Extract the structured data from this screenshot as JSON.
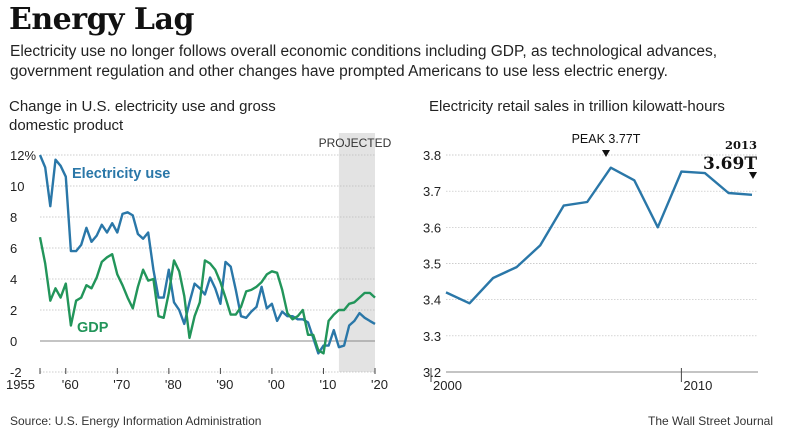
{
  "header": {
    "title": "Energy Lag",
    "subtitle": "Electricity use no longer follows overall economic conditions including GDP, as technological advances, government regulation and other changes have prompted Americans to use less electric energy."
  },
  "footer": {
    "source": "Source: U.S. Energy Information Administration",
    "publisher": "The Wall Street Journal"
  },
  "colors": {
    "electricity": "#2a77a8",
    "gdp": "#22955a",
    "projected_band": "#e3e3e3",
    "grid": "#bdbdbd"
  },
  "chart_data": [
    {
      "type": "line",
      "title": "Change in U.S. electricity use and gross domestic product",
      "projected_label": "PROJECTED",
      "projected_range": [
        2013,
        2020
      ],
      "xlim": [
        1955,
        2020
      ],
      "ylim": [
        -2,
        12
      ],
      "x_ticks": [
        {
          "value": 1955,
          "label": "1955"
        },
        {
          "value": 1960,
          "label": "'60"
        },
        {
          "value": 1970,
          "label": "'70"
        },
        {
          "value": 1980,
          "label": "'80"
        },
        {
          "value": 1990,
          "label": "'90"
        },
        {
          "value": 2000,
          "label": "'00"
        },
        {
          "value": 2010,
          "label": "'10"
        },
        {
          "value": 2020,
          "label": "'20"
        }
      ],
      "y_ticks": [
        {
          "value": -2,
          "label": "-2"
        },
        {
          "value": 0,
          "label": "0"
        },
        {
          "value": 2,
          "label": "2"
        },
        {
          "value": 4,
          "label": "4"
        },
        {
          "value": 6,
          "label": "6"
        },
        {
          "value": 8,
          "label": "8"
        },
        {
          "value": 10,
          "label": "10"
        },
        {
          "value": 12,
          "label": "12%"
        }
      ],
      "series": [
        {
          "name": "Electricity use",
          "x": [
            1955,
            1956,
            1957,
            1958,
            1959,
            1960,
            1961,
            1962,
            1963,
            1964,
            1965,
            1966,
            1967,
            1968,
            1969,
            1970,
            1971,
            1972,
            1973,
            1974,
            1975,
            1976,
            1977,
            1978,
            1979,
            1980,
            1981,
            1982,
            1983,
            1984,
            1985,
            1986,
            1987,
            1988,
            1989,
            1990,
            1991,
            1992,
            1993,
            1994,
            1995,
            1996,
            1997,
            1998,
            1999,
            2000,
            2001,
            2002,
            2003,
            2004,
            2005,
            2006,
            2007,
            2008,
            2009,
            2010,
            2011,
            2012,
            2013,
            2014,
            2015,
            2016,
            2017,
            2018,
            2019,
            2020
          ],
          "values": [
            12,
            11.2,
            8.7,
            11.7,
            11.3,
            10.6,
            5.8,
            5.8,
            6.2,
            7.3,
            6.4,
            6.8,
            7.5,
            7,
            7.6,
            7,
            8.2,
            8.3,
            8.1,
            6.9,
            6.6,
            7,
            4.6,
            2.8,
            2.8,
            4.6,
            2.5,
            2,
            1.1,
            2.5,
            3.7,
            3.4,
            3,
            4.1,
            3.4,
            2.4,
            5.1,
            4.8,
            3.3,
            1.6,
            1.5,
            1.9,
            2.2,
            3.5,
            2.1,
            2.4,
            1.3,
            1.9,
            1.6,
            1.6,
            1.4,
            1.4,
            1.2,
            0.2,
            -0.8,
            -0.3,
            -0.3,
            0.7,
            -0.4,
            -0.3,
            1,
            1.3,
            1.8,
            1.5,
            1.3,
            1.1
          ]
        },
        {
          "name": "GDP",
          "x": [
            1955,
            1956,
            1957,
            1958,
            1959,
            1960,
            1961,
            1962,
            1963,
            1964,
            1965,
            1966,
            1967,
            1968,
            1969,
            1970,
            1971,
            1972,
            1973,
            1974,
            1975,
            1976,
            1977,
            1978,
            1979,
            1980,
            1981,
            1982,
            1983,
            1984,
            1985,
            1986,
            1987,
            1988,
            1989,
            1990,
            1991,
            1992,
            1993,
            1994,
            1995,
            1996,
            1997,
            1998,
            1999,
            2000,
            2001,
            2002,
            2003,
            2004,
            2005,
            2006,
            2007,
            2008,
            2009,
            2010,
            2011,
            2012,
            2013,
            2014,
            2015,
            2016,
            2017,
            2018,
            2019,
            2020
          ],
          "values": [
            6.7,
            5,
            2.6,
            3.4,
            2.8,
            3.7,
            1,
            2.6,
            2.8,
            3.6,
            3.4,
            4.1,
            5.1,
            5.4,
            5.6,
            4.3,
            3.6,
            2.8,
            2.1,
            3.5,
            4.6,
            3.9,
            4,
            1.6,
            1.5,
            3.1,
            5.2,
            4.5,
            2.9,
            0.2,
            1.6,
            2.5,
            5.2,
            5,
            4.6,
            3.8,
            2.8,
            1.7,
            1.7,
            2.2,
            3.2,
            3.3,
            3.5,
            3.8,
            4.3,
            4.5,
            4.4,
            3.3,
            1.8,
            1.4,
            1.6,
            2,
            0.4,
            0.4,
            -0.6,
            -0.8,
            1.3,
            1.7,
            2,
            2,
            2.4,
            2.5,
            2.8,
            3.1,
            3.1,
            2.8
          ]
        }
      ]
    },
    {
      "type": "line",
      "title": "Electricity retail sales in trillion kilowatt-hours",
      "xlim": [
        2000,
        2013
      ],
      "ylim": [
        3.2,
        3.8
      ],
      "x_ticks": [
        {
          "value": 2000,
          "label": "2000"
        },
        {
          "value": 2010,
          "label": "2010"
        }
      ],
      "y_ticks": [
        {
          "value": 3.2,
          "label": "3.2"
        },
        {
          "value": 3.3,
          "label": "3.3"
        },
        {
          "value": 3.4,
          "label": "3.4"
        },
        {
          "value": 3.5,
          "label": "3.5"
        },
        {
          "value": 3.6,
          "label": "3.6"
        },
        {
          "value": 3.7,
          "label": "3.7"
        },
        {
          "value": 3.8,
          "label": "3.8"
        }
      ],
      "series": [
        {
          "name": "",
          "x": [
            2000,
            2001,
            2002,
            2003,
            2004,
            2005,
            2006,
            2007,
            2008,
            2009,
            2010,
            2011,
            2012,
            2013
          ],
          "values": [
            3.42,
            3.39,
            3.46,
            3.49,
            3.55,
            3.66,
            3.67,
            3.765,
            3.73,
            3.6,
            3.754,
            3.75,
            3.695,
            3.69
          ]
        }
      ],
      "annotations": [
        {
          "label": "PEAK 3.77T",
          "x": 2007,
          "y": 3.77
        },
        {
          "year": "2013",
          "value_label": "3.69T",
          "x": 2013,
          "y": 3.69
        }
      ]
    }
  ]
}
